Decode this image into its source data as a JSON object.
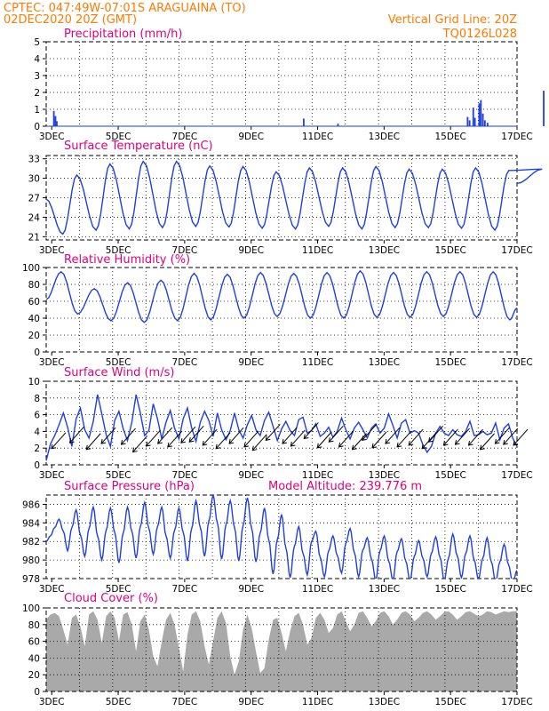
{
  "header": {
    "line1_left": "CPTEC:   047:49W-07:01S   ARAGUAINA (TO)",
    "line2_left": "02DEC2020 20Z (GMT)",
    "line1_right": "Vertical Grid Line: 20Z",
    "line2_right": "TQ0126L028"
  },
  "colors": {
    "header": "#ff7a00",
    "panel_title": "#e0007a",
    "series": "#1f3fe0",
    "wind_arrow": "#000000",
    "cloud_fill": "#a9a9a9"
  },
  "model_altitude_label": "Model Altitude: 239.776 m",
  "x_axis": {
    "ticks": [
      "3DEC",
      "5DEC",
      "7DEC",
      "9DEC",
      "11DEC",
      "13DEC",
      "15DEC",
      "17DEC"
    ],
    "start": "02DEC2020 20Z",
    "end": "17DEC2020 00Z",
    "vertical_grid": "20Z"
  },
  "chart_data": [
    {
      "type": "bar",
      "title": "Precipitation (mm/h)",
      "ylim": [
        0,
        5
      ],
      "yticks": [
        0,
        1,
        2,
        3,
        4,
        5
      ],
      "grid": true,
      "x_days": [
        0.23,
        0.28,
        0.32,
        7.75,
        8.78,
        12.68,
        12.74,
        12.85,
        12.9,
        13.03,
        13.08,
        13.14,
        13.2,
        13.28,
        14.97
      ],
      "values": [
        0.9,
        0.6,
        0.3,
        0.45,
        0.15,
        0.55,
        0.35,
        1.1,
        0.5,
        1.35,
        1.55,
        0.75,
        0.35,
        0.2,
        2.1
      ]
    },
    {
      "type": "line",
      "title": "Surface Temperature (nC)",
      "ylim": [
        20.5,
        33.5
      ],
      "yticks": [
        21,
        24,
        27,
        30,
        33
      ],
      "grid": true,
      "daily_min": [
        21.4,
        22.0,
        22.2,
        22.4,
        22.6,
        22.5,
        22.3,
        22.2,
        22.6,
        22.2,
        22.4,
        22.4,
        22.3,
        22.0
      ],
      "daily_max": [
        30.5,
        32.2,
        32.6,
        32.6,
        31.9,
        31.8,
        31.0,
        31.6,
        31.6,
        31.8,
        31.4,
        31.4,
        31.6,
        31.2,
        31.4
      ],
      "end_value": 29.2
    },
    {
      "type": "line",
      "title": "Relative Humidity (%)",
      "ylim": [
        0,
        100
      ],
      "yticks": [
        0,
        20,
        40,
        60,
        80,
        100
      ],
      "grid": true,
      "daily_max": [
        95,
        75,
        82,
        85,
        93,
        92,
        94,
        93,
        94,
        96,
        94,
        95,
        95,
        95
      ],
      "daily_min": [
        45,
        37,
        35,
        37,
        38,
        40,
        42,
        40,
        40,
        41,
        41,
        42,
        41,
        38,
        40
      ],
      "end_value": 52
    },
    {
      "type": "line",
      "title": "Surface Wind (m/s)",
      "ylim": [
        0,
        10
      ],
      "yticks": [
        0,
        2,
        4,
        6,
        8,
        10
      ],
      "grid": true,
      "speeds": [
        0.5,
        2.5,
        3.5,
        4.8,
        6.2,
        4.5,
        2.2,
        5.5,
        6.8,
        4.2,
        3.2,
        5.2,
        8.4,
        6.1,
        3.6,
        2.2,
        5.3,
        6.4,
        4.3,
        2.9,
        5.1,
        8.4,
        6.2,
        3.5,
        4.1,
        7.3,
        5.5,
        3.1,
        5.1,
        6.5,
        4.4,
        3.1,
        5.5,
        6.8,
        4.4,
        2.8,
        5.1,
        6.4,
        5.3,
        3.4,
        6.2,
        4.2,
        3.0,
        4.1,
        6.2,
        4.2,
        3.2,
        4.8,
        5.9,
        4.2,
        3.5,
        5.3,
        6.3,
        4.6,
        2.9,
        4.3,
        5.2,
        4.1,
        3.5,
        5.4,
        5.7,
        3.8,
        4.1,
        4.9,
        3.4,
        3.8,
        4.5,
        3.3,
        4.0,
        5.6,
        4.2,
        3.1,
        4.4,
        5.1,
        4.2,
        3.2,
        4.4,
        4.9,
        3.8,
        4.4,
        6.1,
        4.7,
        3.2,
        5.0,
        5.4,
        3.8,
        4.1,
        3.8,
        2.4,
        1.5,
        2.2,
        3.8,
        4.6,
        3.8,
        3.5,
        4.2,
        3.6,
        3.4,
        4.0,
        5.2,
        3.5,
        3.6,
        4.0,
        3.6,
        3.8,
        5.0,
        3.0,
        4.4,
        4.9,
        3.2,
        2.2
      ],
      "arrow_days": [
        0.4,
        0.95,
        1.45,
        1.9,
        2.5,
        2.85,
        3.25,
        3.6,
        3.9,
        4.3,
        4.55,
        4.95,
        5.35,
        5.75,
        6.2,
        6.45,
        6.85,
        7.35,
        7.6,
        8.0,
        8.4,
        8.75,
        9.05,
        9.45,
        9.75,
        10.05,
        10.45,
        10.8,
        11.15,
        11.55,
        11.75,
        12.2,
        12.55,
        12.95,
        13.3,
        13.75,
        14.0,
        14.3
      ],
      "arrow_speeds": [
        3.0,
        3.7,
        2.9,
        3.6,
        3.5,
        2.6,
        3.3,
        3.6,
        3.2,
        3.7,
        3.8,
        3.4,
        3.0,
        3.6,
        3.2,
        2.8,
        4.0,
        3.6,
        3.3,
        4.2,
        3.1,
        3.8,
        3.2,
        2.9,
        4.0,
        3.1,
        3.6,
        3.2,
        3.4,
        3.0,
        3.8,
        3.4,
        3.5,
        3.4,
        2.9,
        3.6,
        3.5,
        3.4
      ],
      "arrow_direction": "north-east wind (arrows point south-west)"
    },
    {
      "type": "line",
      "title": "Surface Pressure (hPa)",
      "ylim": [
        978,
        987
      ],
      "yticks": [
        978,
        980,
        982,
        984,
        986
      ],
      "grid": true,
      "six_hourly": [
        982.0,
        982.6,
        983.5,
        984.4,
        983.1,
        981.0,
        983.5,
        985.4,
        982.7,
        980.4,
        983.4,
        985.7,
        982.6,
        980.0,
        983.2,
        985.6,
        983.0,
        979.7,
        982.9,
        985.7,
        983.1,
        980.2,
        983.6,
        986.2,
        983.4,
        980.6,
        983.6,
        985.7,
        982.6,
        980.2,
        983.2,
        985.6,
        983.0,
        979.9,
        983.4,
        986.4,
        983.5,
        980.4,
        984.2,
        987.0,
        984.0,
        980.1,
        983.8,
        986.4,
        983.5,
        979.9,
        983.7,
        986.7,
        983.4,
        979.8,
        982.9,
        985.6,
        982.2,
        978.5,
        982.2,
        984.9,
        981.3,
        978.1,
        981.5,
        983.6,
        980.7,
        978.4,
        982.0,
        983.1,
        980.3,
        978.2,
        981.0,
        982.6,
        980.5,
        978.6,
        981.8,
        983.4,
        980.8,
        978.2,
        981.1,
        982.4,
        980.1,
        977.8,
        981.0,
        982.6,
        979.9,
        977.8,
        980.9,
        982.3,
        979.9,
        977.8,
        980.4,
        982.1,
        980.2,
        978.2,
        980.7,
        982.5,
        980.3,
        977.8,
        980.2,
        982.8,
        980.5,
        978.1,
        980.7,
        982.6,
        980.0,
        977.9,
        980.2,
        982.4,
        979.8,
        977.6,
        979.8,
        981.7,
        979.5,
        977.5,
        978.9
      ]
    },
    {
      "type": "area",
      "title": "Cloud Cover (%)",
      "ylim": [
        0,
        100
      ],
      "yticks": [
        0,
        20,
        40,
        60,
        80,
        100
      ],
      "grid": true,
      "six_hourly": [
        86,
        92,
        94,
        90,
        74,
        56,
        88,
        92,
        78,
        54,
        92,
        96,
        86,
        58,
        90,
        96,
        88,
        60,
        92,
        95,
        80,
        48,
        84,
        92,
        74,
        42,
        30,
        60,
        86,
        94,
        80,
        52,
        24,
        68,
        92,
        96,
        84,
        54,
        32,
        60,
        88,
        96,
        82,
        42,
        20,
        36,
        74,
        92,
        76,
        48,
        22,
        28,
        62,
        86,
        88,
        70,
        48,
        72,
        90,
        94,
        80,
        56,
        64,
        88,
        94,
        86,
        70,
        76,
        92,
        96,
        84,
        72,
        80,
        94,
        96,
        88,
        78,
        84,
        94,
        96,
        90,
        80,
        86,
        94,
        96,
        92,
        84,
        88,
        94,
        96,
        92,
        86,
        90,
        95,
        96,
        92,
        86,
        90,
        95,
        96,
        93,
        90,
        92,
        96,
        95,
        92,
        94,
        96,
        95,
        96,
        96
      ]
    }
  ]
}
